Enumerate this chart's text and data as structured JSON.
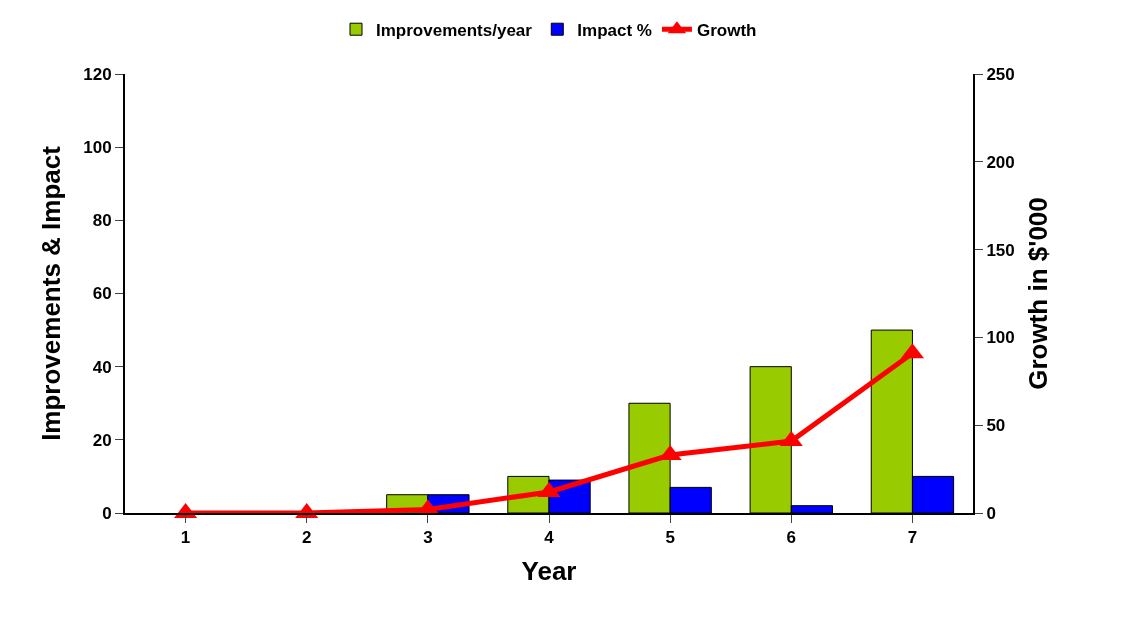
{
  "chart_data": {
    "type": "bar",
    "categories": [
      "1",
      "2",
      "3",
      "4",
      "5",
      "6",
      "7"
    ],
    "xlabel": "Year",
    "ylabel": "Improvements & Impact",
    "y2label": "Growth in $'000",
    "series": [
      {
        "name": "Improvements/year",
        "color": "#99cc00",
        "values": [
          null,
          null,
          5,
          10,
          30,
          40,
          50
        ]
      },
      {
        "name": "Impact %",
        "color": "#0000ff",
        "values": [
          null,
          null,
          5,
          9,
          7,
          2,
          10
        ]
      },
      {
        "name": "Growth",
        "type": "line",
        "axis": "y2",
        "color": "#ff0000",
        "marker": "triangle",
        "values": [
          0,
          0,
          2,
          12,
          33,
          41,
          91
        ]
      }
    ],
    "ylim": [
      0,
      120
    ],
    "yticks": [
      0,
      20,
      40,
      60,
      80,
      100,
      120
    ],
    "y2lim": [
      0,
      250
    ],
    "y2ticks": [
      0,
      50,
      100,
      150,
      200,
      250
    ],
    "legend": "top"
  }
}
